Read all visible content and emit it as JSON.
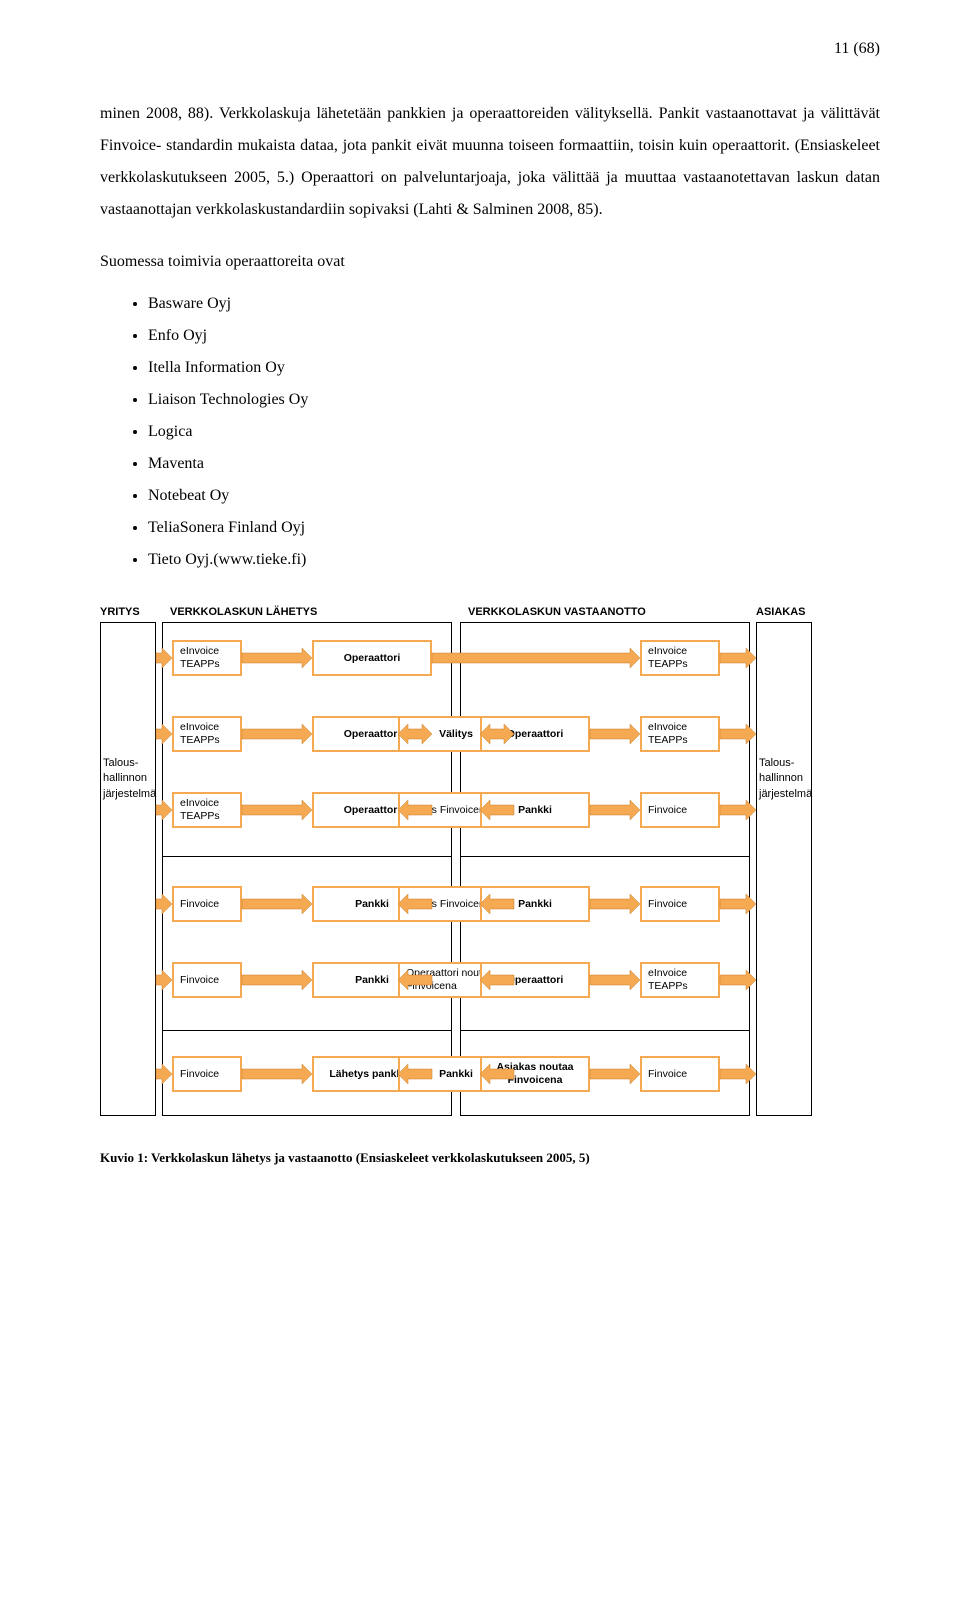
{
  "page_number": "11 (68)",
  "paragraph1": "minen 2008, 88). Verkkolaskuja lähetetään pankkien ja operaattoreiden välityksellä. Pankit vastaanottavat ja välittävät Finvoice- standardin mukaista dataa, jota pankit eivät muunna toiseen formaattiin, toisin kuin operaattorit. (Ensiaskeleet verkkolaskutukseen 2005, 5.) Operaattori on palveluntarjoaja, joka välittää ja muuttaa vastaanotettavan laskun datan vastaanottajan verkkolaskustandardiin sopivaksi (Lahti & Salminen 2008, 85).",
  "list_intro": "Suomessa toimivia operaattoreita ovat",
  "operators": [
    "Basware Oyj",
    "Enfo Oyj",
    "Itella Information Oy",
    "Liaison Technologies Oy",
    "Logica",
    "Maventa",
    "Notebeat Oy",
    "TeliaSonera Finland Oyj",
    "Tieto Oyj.(www.tieke.fi)"
  ],
  "caption": "Kuvio 1: Verkkolaskun lähetys ja vastaanotto (Ensiaskeleet verkkolaskutukseen 2005, 5)",
  "diagram": {
    "colors": {
      "node_border": "#f5a952",
      "arrow_fill": "#f5a952",
      "box_border": "#000000",
      "bg": "#ffffff"
    },
    "headers": {
      "left": "YRITYS",
      "send": "VERKKOLASKUN LÄHETYS",
      "recv": "VERKKOLASKUN VASTAANOTTO",
      "right": "ASIAKAS"
    },
    "side_left": "Talous-\nhallinnon\njärjestelmä",
    "side_right": "Talous-\nhallinnon\njärjestelmä",
    "rows": [
      {
        "c1": "eInvoice\nTEAPPs",
        "c2": "Operaattori",
        "mid": null,
        "c3": null,
        "c4": "eInvoice\nTEAPPs"
      },
      {
        "c1": "eInvoice\nTEAPPs",
        "c2": "Operaattori",
        "mid": "Välitys",
        "c3": "Operaattori",
        "c4": "eInvoice\nTEAPPs"
      },
      {
        "c1": "eInvoice\nTEAPPs",
        "c2": "Operaattori",
        "mid": "Välitys Finvoicena",
        "c3": "Pankki",
        "c4": "Finvoice"
      },
      {
        "c1": "Finvoice",
        "c2": "Pankki",
        "mid": "Välitys Finvoicena",
        "c3": "Pankki",
        "c4": "Finvoice"
      },
      {
        "c1": "Finvoice",
        "c2": "Pankki",
        "mid": "Operaattori noutaa\nFinvoicena",
        "c3": "Operaattori",
        "c4": "eInvoice\nTEAPPs"
      },
      {
        "c1": "Finvoice",
        "c2": "Lähetys pankkiin",
        "mid": "Pankki",
        "c3": "Asiakas noutaa\nFinvoicena",
        "c4": "Finvoice"
      }
    ]
  }
}
